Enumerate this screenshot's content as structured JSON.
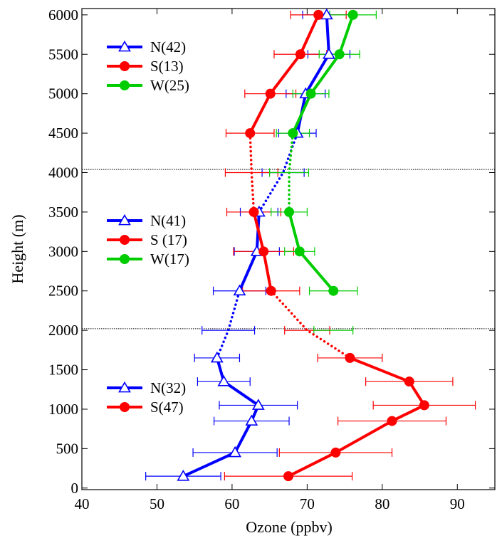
{
  "chart_data": {
    "type": "line",
    "xlabel": "Ozone (ppbv)",
    "ylabel": "Height (m)",
    "xlim": [
      40,
      95
    ],
    "ylim": [
      -20,
      6080
    ],
    "xticks": [
      40,
      50,
      60,
      70,
      80,
      90
    ],
    "yticks": [
      0,
      500,
      1000,
      1500,
      2000,
      2500,
      3000,
      3500,
      4000,
      4500,
      5000,
      5500,
      6000
    ],
    "grid": false,
    "reference_lines": [
      {
        "y": 2020,
        "style": "dotted"
      },
      {
        "y": 4040,
        "style": "dotted"
      }
    ],
    "colors": {
      "N": "#0000ff",
      "S": "#ff0000",
      "W": "#00cc00"
    },
    "series": [
      {
        "name": "N(32)",
        "group": "N",
        "marker": "triangle",
        "style": "solid",
        "x": [
          53.5,
          60.4,
          62.6,
          63.5,
          58.9,
          58.0
        ],
        "y": [
          150,
          450,
          850,
          1050,
          1350,
          1650
        ],
        "err": [
          5.0,
          5.6,
          5.0,
          5.2,
          3.5,
          3.0
        ]
      },
      {
        "name": "S(47)",
        "group": "S",
        "marker": "circle",
        "style": "solid",
        "x": [
          67.5,
          73.8,
          81.3,
          85.6,
          83.6,
          75.7
        ],
        "y": [
          150,
          450,
          850,
          1050,
          1350,
          1650
        ],
        "err": [
          8.5,
          7.5,
          7.2,
          6.8,
          5.8,
          4.3
        ]
      },
      {
        "name": "N(41)",
        "group": "N",
        "marker": "triangle",
        "style": "solid",
        "x": [
          61.0,
          63.3,
          63.6
        ],
        "y": [
          2500,
          3000,
          3500
        ],
        "err": [
          3.5,
          3.0,
          2.5
        ]
      },
      {
        "name": "S (17)",
        "group": "S",
        "marker": "circle",
        "style": "solid",
        "x": [
          65.2,
          64.2,
          62.9
        ],
        "y": [
          2500,
          3000,
          3500
        ],
        "err": [
          3.8,
          4.0,
          3.6
        ]
      },
      {
        "name": "W(17)",
        "group": "W",
        "marker": "circle",
        "style": "solid",
        "x": [
          73.5,
          69.0,
          67.6
        ],
        "y": [
          2500,
          3000,
          3500
        ],
        "err": [
          3.2,
          2.0,
          2.4
        ]
      },
      {
        "name": "N(42)",
        "group": "N",
        "marker": "triangle",
        "style": "solid",
        "x": [
          68.7,
          69.8,
          72.9,
          72.6
        ],
        "y": [
          4500,
          5000,
          5500,
          6000
        ],
        "err": [
          2.5,
          2.6,
          2.8,
          3.2
        ]
      },
      {
        "name": "S(13)",
        "group": "S",
        "marker": "circle",
        "style": "solid",
        "x": [
          62.4,
          65.1,
          69.1,
          71.5
        ],
        "y": [
          4500,
          5000,
          5500,
          6000
        ],
        "err": [
          3.2,
          3.4,
          3.5,
          3.7
        ]
      },
      {
        "name": "W(25)",
        "group": "W",
        "marker": "circle",
        "style": "solid",
        "x": [
          68.1,
          70.5,
          74.3,
          76.1
        ],
        "y": [
          4500,
          5000,
          5500,
          6000
        ],
        "err": [
          2.2,
          2.4,
          2.7,
          3.1
        ]
      },
      {
        "name": "",
        "group": "N",
        "style": "dotted",
        "x": [
          58.0,
          59.5,
          61.0
        ],
        "y": [
          1650,
          2000,
          2500
        ]
      },
      {
        "name": "",
        "group": "N",
        "style": "dotted",
        "x": [
          63.6,
          66.8,
          68.7
        ],
        "y": [
          3500,
          4000,
          4500
        ]
      },
      {
        "name": "",
        "group": "S",
        "style": "dotted",
        "x": [
          75.7,
          70.0,
          65.2
        ],
        "y": [
          1650,
          2000,
          2500
        ]
      },
      {
        "name": "",
        "group": "S",
        "style": "dotted",
        "x": [
          62.9,
          62.6,
          62.4
        ],
        "y": [
          3500,
          4000,
          4500
        ]
      },
      {
        "name": "",
        "group": "W",
        "style": "dotted",
        "x": [
          67.6,
          67.6,
          68.1
        ],
        "y": [
          3500,
          4000,
          4500
        ]
      }
    ],
    "extra_errorbars": [
      {
        "group": "N",
        "x": 59.5,
        "y": 2000,
        "err": 3.5
      },
      {
        "group": "S",
        "x": 70.0,
        "y": 2000,
        "err": 3.0
      },
      {
        "group": "W",
        "x": 73.5,
        "y": 2000,
        "err": 2.6
      },
      {
        "group": "N",
        "x": 66.8,
        "y": 4000,
        "err": 2.8
      },
      {
        "group": "S",
        "x": 62.6,
        "y": 4000,
        "err": 3.5
      },
      {
        "group": "W",
        "x": 67.6,
        "y": 4000,
        "err": 2.6
      }
    ],
    "legends": [
      {
        "placement": "top-left",
        "series": [
          "N(42)",
          "S(13)",
          "W(25)"
        ]
      },
      {
        "placement": "middle-left",
        "series": [
          "N(41)",
          "S (17)",
          "W(17)"
        ]
      },
      {
        "placement": "bottom-left",
        "series": [
          "N(32)",
          "S(47)"
        ]
      }
    ]
  }
}
